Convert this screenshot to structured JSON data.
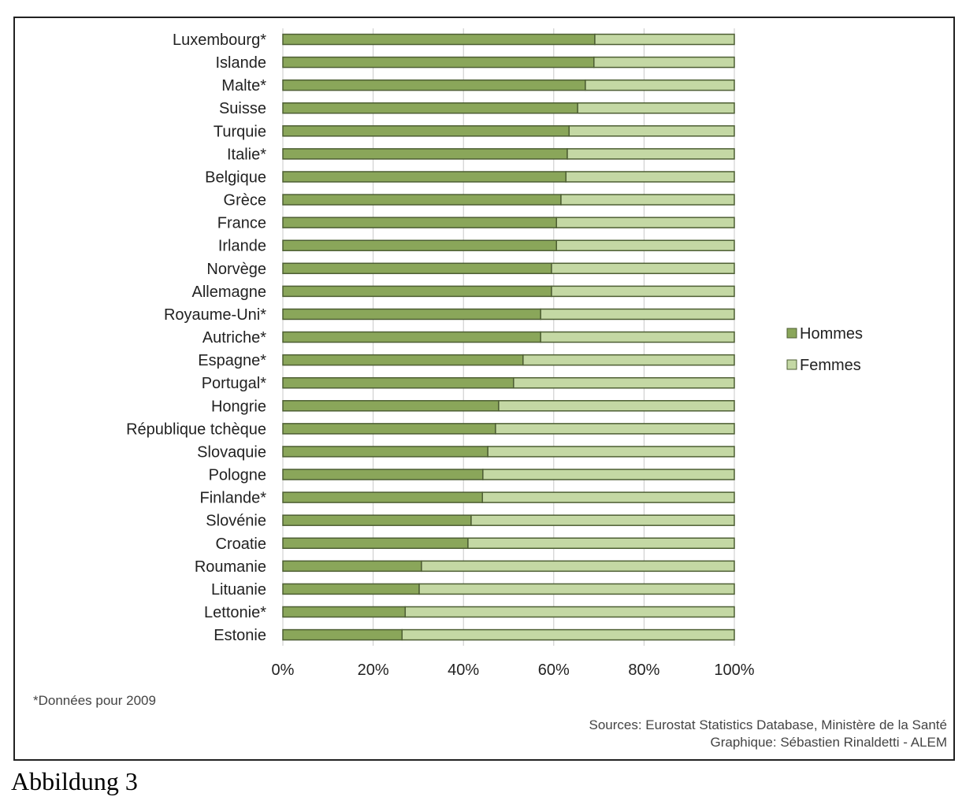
{
  "chart_data": {
    "type": "bar",
    "orientation": "horizontal",
    "stacked": true,
    "categories": [
      "Luxembourg*",
      "Islande",
      "Malte*",
      "Suisse",
      "Turquie",
      "Italie*",
      "Belgique",
      "Grèce",
      "France",
      "Irlande",
      "Norvège",
      "Allemagne",
      "Royaume-Uni*",
      "Autriche*",
      "Espagne*",
      "Portugal*",
      "Hongrie",
      "République tchèque",
      "Slovaquie",
      "Pologne",
      "Finlande*",
      "Slovénie",
      "Croatie",
      "Roumanie",
      "Lituanie",
      "Lettonie*",
      "Estonie"
    ],
    "series": [
      {
        "name": "Hommes",
        "color": "#8aa65a",
        "values": [
          69.1,
          68.9,
          67.0,
          65.3,
          63.4,
          63.0,
          62.7,
          61.6,
          60.6,
          60.6,
          59.5,
          59.5,
          57.1,
          57.1,
          53.2,
          51.1,
          47.8,
          47.1,
          45.4,
          44.3,
          44.2,
          41.7,
          41.0,
          30.7,
          30.2,
          27.1,
          26.4
        ]
      },
      {
        "name": "Femmes",
        "color": "#c4d8a4",
        "values": [
          30.9,
          31.1,
          33.0,
          34.7,
          36.6,
          37.0,
          37.3,
          38.4,
          39.4,
          39.4,
          40.5,
          40.5,
          42.9,
          42.9,
          46.8,
          48.9,
          52.2,
          52.9,
          54.6,
          55.7,
          55.8,
          58.3,
          59.0,
          69.3,
          69.8,
          72.9,
          73.6
        ]
      }
    ],
    "xticks": [
      "0%",
      "20%",
      "40%",
      "60%",
      "80%",
      "100%"
    ],
    "xlim": [
      0,
      100
    ],
    "grid": true,
    "legend_position": "right",
    "title": "",
    "xlabel": "",
    "ylabel": ""
  },
  "notes": {
    "footnote": "*Données pour 2009",
    "sources": "Sources: Eurostat Statistics Database, Ministère de la Santé",
    "graphic": "Graphique: Sébastien Rinaldetti - ALEM"
  },
  "caption": "Abbildung 3"
}
